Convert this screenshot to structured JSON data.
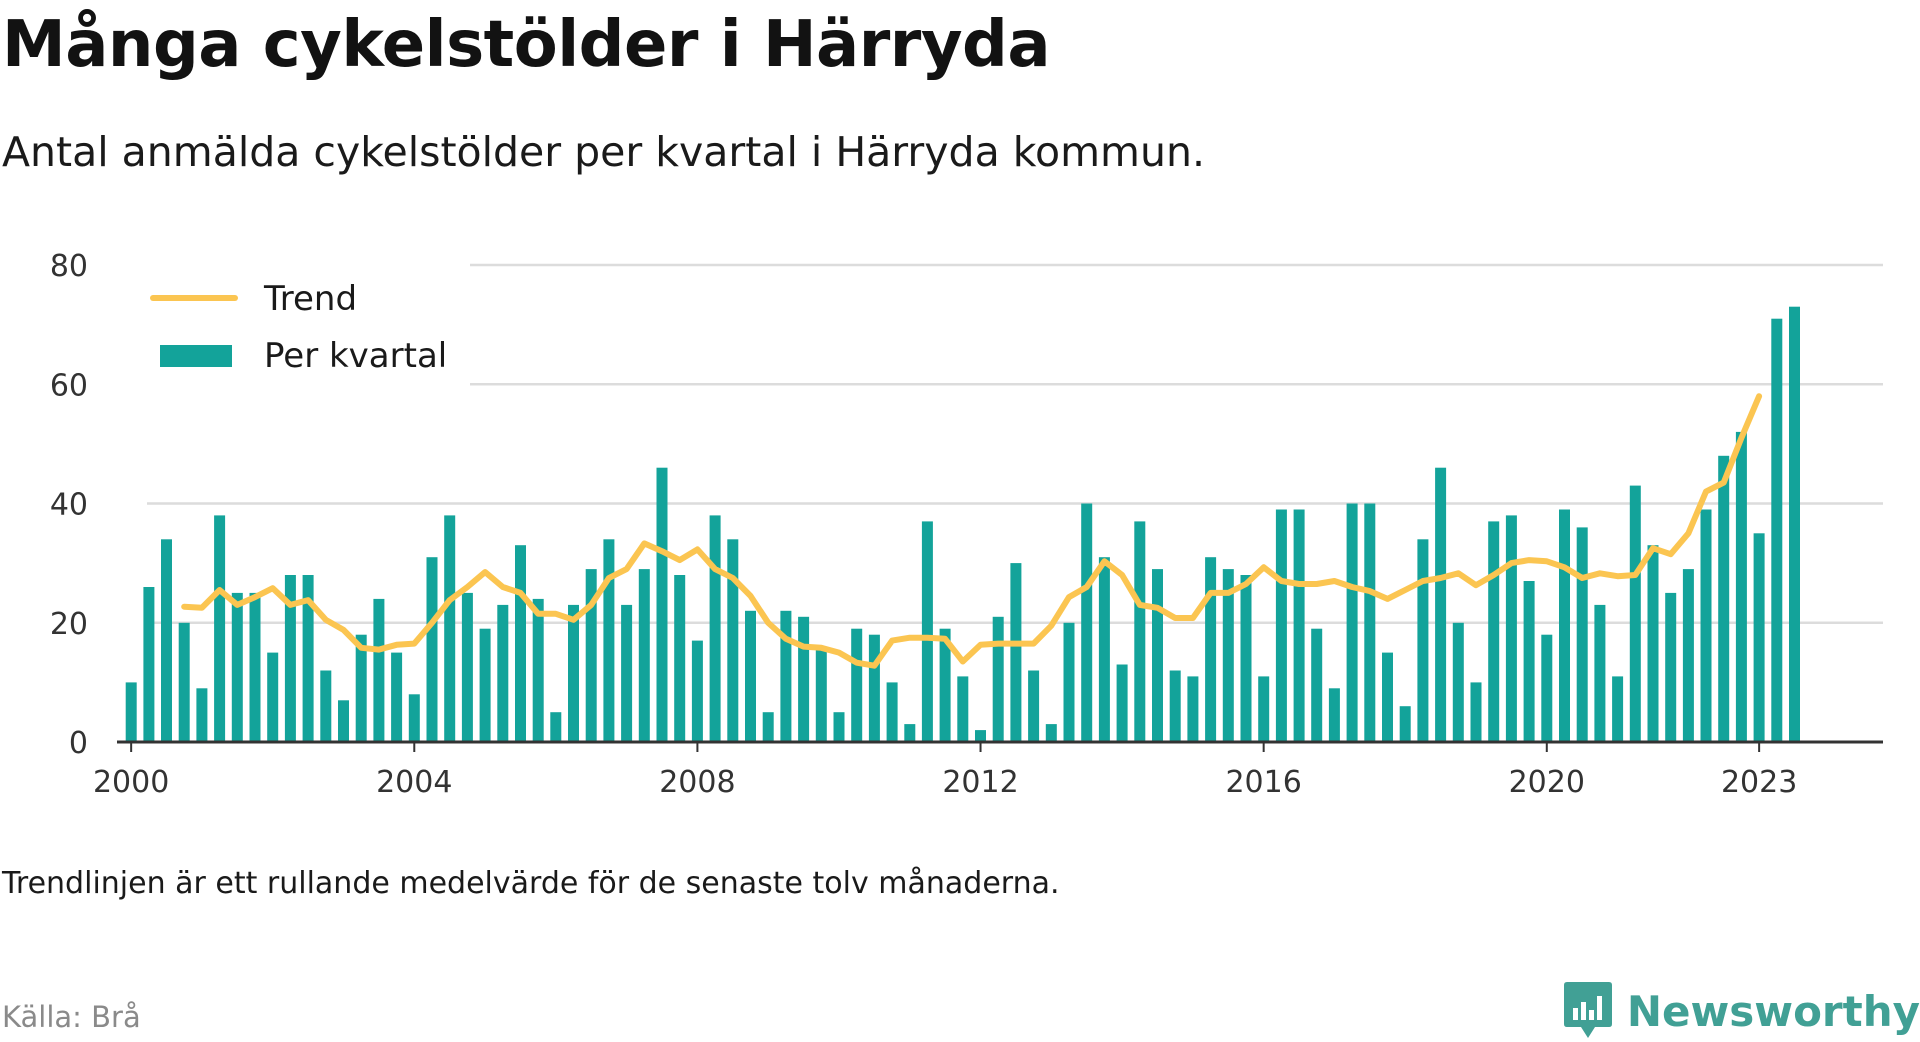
{
  "title": "Många cykelstölder i Härryda",
  "subtitle": "Antal anmälda cykelstölder per kvartal i Härryda kommun.",
  "note": "Trendlinjen är ett rullande medelvärde för de senaste tolv månaderna.",
  "source": "Källa: Brå",
  "logo": {
    "name": "Newsworthy",
    "icon": "newsworthy-chart-icon"
  },
  "colors": {
    "bars": "#13a39a",
    "trend": "#fbc551",
    "grid": "#dcdcdc",
    "axis": "#333333",
    "logo": "#41a095"
  },
  "chart_data": {
    "type": "bar",
    "title": "Många cykelstölder i Härryda",
    "subtitle": "Antal anmälda cykelstölder per kvartal i Härryda kommun.",
    "xlabel": "",
    "ylabel": "",
    "ylim": [
      0,
      80
    ],
    "yticks": [
      0,
      20,
      40,
      60,
      80
    ],
    "xlim": [
      1999.8,
      2024.75
    ],
    "xticks": [
      {
        "label": "2000",
        "value": 2000
      },
      {
        "label": "2004",
        "value": 2004
      },
      {
        "label": "2008",
        "value": 2008
      },
      {
        "label": "2012",
        "value": 2012
      },
      {
        "label": "2016",
        "value": 2016
      },
      {
        "label": "2020",
        "value": 2020
      },
      {
        "label": "2023",
        "value": 2023
      }
    ],
    "grid": true,
    "legend": {
      "placement": "top-left",
      "entries": [
        "Trend",
        "Per kvartal"
      ]
    },
    "x_start": 2000,
    "x_step": 0.25,
    "series": [
      {
        "name": "Per kvartal",
        "type": "bar",
        "values": [
          10,
          26,
          34,
          20,
          9,
          38,
          25,
          25,
          15,
          28,
          28,
          12,
          7,
          18,
          24,
          15,
          8,
          31,
          38,
          25,
          19,
          23,
          33,
          24,
          5,
          23,
          29,
          34,
          23,
          29,
          46,
          28,
          17,
          38,
          34,
          22,
          5,
          22,
          21,
          16,
          5,
          19,
          18,
          10,
          3,
          37,
          19,
          11,
          2,
          21,
          30,
          12,
          3,
          20,
          40,
          31,
          13,
          37,
          29,
          12,
          11,
          31,
          29,
          28,
          11,
          39,
          39,
          19,
          9,
          40,
          40,
          15,
          6,
          34,
          46,
          20,
          10,
          37,
          38,
          27,
          18,
          39,
          36,
          23,
          11,
          43,
          33,
          25,
          29,
          39,
          48,
          52,
          35,
          71,
          73
        ]
      },
      {
        "name": "Trend",
        "type": "line",
        "x_start": 2000.75,
        "values": [
          22.7,
          22.5,
          25.5,
          23.0,
          24.3,
          25.8,
          23.0,
          23.8,
          20.5,
          18.8,
          15.8,
          15.5,
          16.3,
          16.5,
          20.0,
          23.8,
          26.0,
          28.5,
          26.0,
          25.0,
          21.5,
          21.5,
          20.5,
          23.0,
          27.5,
          29.0,
          33.3,
          32.0,
          30.5,
          32.3,
          29.0,
          27.5,
          24.5,
          20.0,
          17.3,
          16.0,
          15.8,
          15.0,
          13.3,
          12.8,
          17.0,
          17.5,
          17.5,
          17.3,
          13.5,
          16.3,
          16.5,
          16.5,
          16.5,
          19.5,
          24.3,
          26.0,
          30.3,
          28.0,
          23.0,
          22.5,
          20.8,
          20.8,
          25.0,
          25.0,
          26.5,
          29.3,
          27.0,
          26.5,
          26.5,
          27.0,
          26.0,
          25.3,
          24.0,
          25.5,
          27.0,
          27.5,
          28.3,
          26.3,
          28.0,
          30.0,
          30.5,
          30.3,
          29.3,
          27.5,
          28.3,
          27.8,
          28.0,
          32.5,
          31.5,
          35.0,
          42.0,
          43.5,
          51.0,
          58.0
        ]
      }
    ]
  }
}
